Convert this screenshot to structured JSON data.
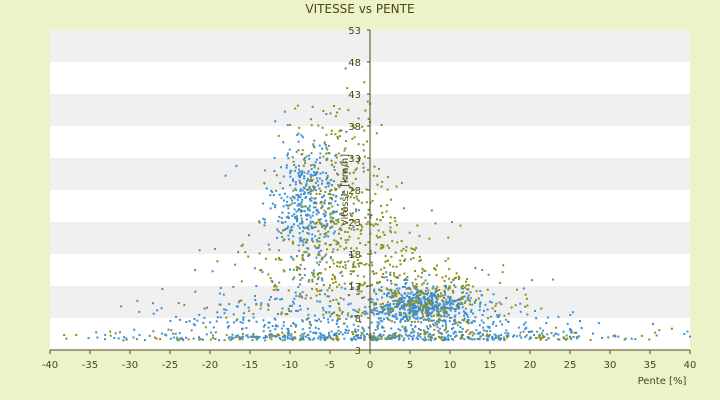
{
  "chart_data": {
    "type": "scatter",
    "title": "VITESSE vs PENTE",
    "xlabel": "Pente [%]",
    "ylabel": "Vitesse [km/h]",
    "xlim": [
      -40,
      40
    ],
    "ylim": [
      3,
      53
    ],
    "xticks": [
      "-40",
      "-35",
      "-30",
      "-25",
      "-20",
      "-15",
      "-10",
      "-5",
      "0",
      "5",
      "10",
      "15",
      "20",
      "25",
      "30",
      "35",
      "40"
    ],
    "yticks": [
      "3",
      "8",
      "13",
      "18",
      "23",
      "28",
      "33",
      "38",
      "43",
      "48",
      "53"
    ],
    "grid": "horizontal alternating bands",
    "legend": "none",
    "colors": {
      "background": "#eef2c8",
      "plot_band_light": "#ffffff",
      "plot_band_dark": "#f0f0f0",
      "axis": "#4a4a20",
      "series_blue": "#3a8fd6",
      "series_olive": "#8a8f1a"
    },
    "series": [
      {
        "color": "#3a8fd6",
        "clusters": [
          {
            "x_mean": -8,
            "x_sd": 2.5,
            "y_mean": 26,
            "y_sd": 5,
            "count": 420
          },
          {
            "x_mean": 6.5,
            "x_sd": 3.5,
            "y_mean": 10,
            "y_sd": 1.5,
            "count": 560
          },
          {
            "x_mean": -10,
            "x_sd": 8,
            "y_mean": 8,
            "y_sd": 3,
            "count": 280
          },
          {
            "x_mean": 0,
            "x_sd": 18,
            "y_mean": 5,
            "y_sd": 0.5,
            "count": 300
          },
          {
            "x_mean": 14,
            "x_sd": 6,
            "y_mean": 6.5,
            "y_sd": 1.6,
            "count": 140
          }
        ]
      },
      {
        "color": "#8a8f1a",
        "clusters": [
          {
            "x_mean": -4,
            "x_sd": 3,
            "y_mean": 27,
            "y_sd": 8,
            "count": 300
          },
          {
            "x_mean": -5,
            "x_sd": 6,
            "y_mean": 16,
            "y_sd": 5,
            "count": 220
          },
          {
            "x_mean": 8,
            "x_sd": 4.5,
            "y_mean": 11,
            "y_sd": 2.5,
            "count": 260
          },
          {
            "x_mean": 3,
            "x_sd": 3,
            "y_mean": 18,
            "y_sd": 5,
            "count": 80
          },
          {
            "x_mean": 0,
            "x_sd": 20,
            "y_mean": 5,
            "y_sd": 0.6,
            "count": 160
          }
        ]
      }
    ]
  }
}
